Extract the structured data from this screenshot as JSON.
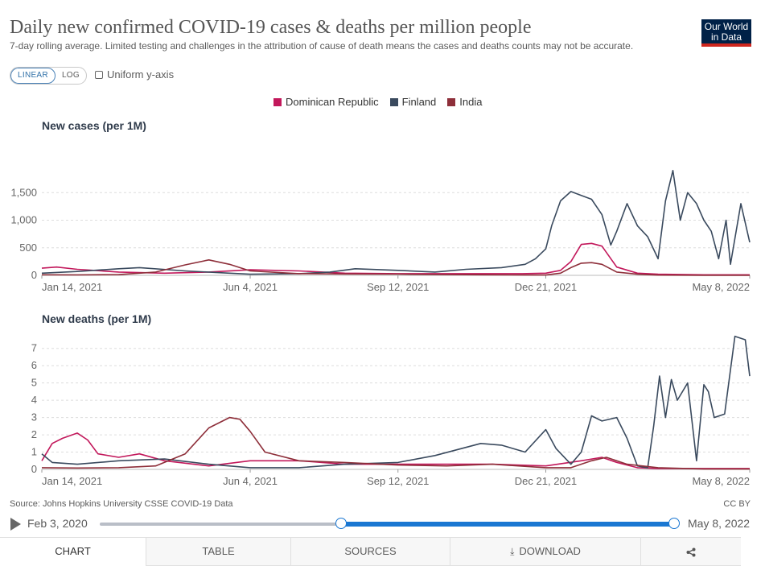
{
  "header": {
    "title": "Daily new confirmed COVID-19 cases & deaths per million people",
    "subtitle": "7-day rolling average. Limited testing and challenges in the attribution of cause of death means the cases and deaths counts may not be accurate.",
    "logo_line1": "Our World",
    "logo_line2": "in Data"
  },
  "controls": {
    "linear_label": "LINEAR",
    "log_label": "LOG",
    "uniform_label": "Uniform y-axis"
  },
  "colors": {
    "dominican": "#c2185b",
    "finland": "#3a4a5e",
    "india": "#8e2f3a",
    "accent": "#1a77d2"
  },
  "chart_data": [
    {
      "type": "line",
      "title": "New cases (per 1M)",
      "x_ticks": [
        "Jan 14, 2021",
        "Jun 4, 2021",
        "Sep 12, 2021",
        "Dec 21, 2021",
        "May 8, 2022"
      ],
      "x_range": [
        "2021-01-14",
        "2022-05-08"
      ],
      "y_ticks": [
        "0",
        "500",
        "1,000",
        "1,500"
      ],
      "ylim": [
        0,
        2000
      ],
      "grid": true,
      "series": [
        {
          "name": "Dominican Republic",
          "color": "#c2185b",
          "x": [
            "2021-01-14",
            "2021-01-24",
            "2021-02-07",
            "2021-03-07",
            "2021-04-07",
            "2021-05-07",
            "2021-06-04",
            "2021-07-07",
            "2021-08-07",
            "2021-09-12",
            "2021-10-15",
            "2021-11-15",
            "2021-12-05",
            "2021-12-21",
            "2021-12-31",
            "2022-01-07",
            "2022-01-14",
            "2022-01-21",
            "2022-01-28",
            "2022-02-07",
            "2022-02-21",
            "2022-03-07",
            "2022-04-07",
            "2022-05-08"
          ],
          "values": [
            130,
            150,
            110,
            60,
            40,
            60,
            100,
            80,
            40,
            30,
            30,
            30,
            30,
            40,
            90,
            250,
            560,
            580,
            530,
            150,
            40,
            20,
            10,
            10
          ]
        },
        {
          "name": "Finland",
          "color": "#3a4a5e",
          "x": [
            "2021-01-14",
            "2021-02-07",
            "2021-03-07",
            "2021-03-21",
            "2021-04-21",
            "2021-05-21",
            "2021-06-04",
            "2021-07-07",
            "2021-07-28",
            "2021-08-14",
            "2021-09-12",
            "2021-10-07",
            "2021-10-28",
            "2021-11-21",
            "2021-12-07",
            "2021-12-14",
            "2021-12-21",
            "2021-12-25",
            "2021-12-31",
            "2022-01-07",
            "2022-01-14",
            "2022-01-21",
            "2022-01-28",
            "2022-02-03",
            "2022-02-07",
            "2022-02-14",
            "2022-02-21",
            "2022-02-28",
            "2022-03-07",
            "2022-03-12",
            "2022-03-17",
            "2022-03-22",
            "2022-03-27",
            "2022-04-02",
            "2022-04-07",
            "2022-04-12",
            "2022-04-17",
            "2022-04-22",
            "2022-04-25",
            "2022-05-02",
            "2022-05-08"
          ],
          "values": [
            40,
            70,
            120,
            140,
            80,
            40,
            20,
            30,
            60,
            120,
            90,
            60,
            110,
            140,
            200,
            300,
            480,
            900,
            1350,
            1520,
            1450,
            1380,
            1100,
            550,
            800,
            1300,
            900,
            700,
            300,
            1350,
            1900,
            1000,
            1500,
            1300,
            1000,
            800,
            300,
            1000,
            200,
            1300,
            600
          ]
        },
        {
          "name": "India",
          "color": "#8e2f3a",
          "x": [
            "2021-01-14",
            "2021-02-07",
            "2021-03-07",
            "2021-04-01",
            "2021-04-21",
            "2021-05-07",
            "2021-05-21",
            "2021-06-04",
            "2021-07-07",
            "2021-08-07",
            "2021-09-12",
            "2021-10-07",
            "2021-11-07",
            "2021-12-07",
            "2021-12-21",
            "2021-12-31",
            "2022-01-07",
            "2022-01-14",
            "2022-01-21",
            "2022-01-28",
            "2022-02-07",
            "2022-02-21",
            "2022-03-07",
            "2022-04-07",
            "2022-05-08"
          ],
          "values": [
            10,
            9,
            13,
            60,
            190,
            280,
            200,
            80,
            30,
            25,
            22,
            15,
            10,
            6,
            6,
            40,
            140,
            220,
            230,
            200,
            60,
            20,
            5,
            1,
            2
          ]
        }
      ]
    },
    {
      "type": "line",
      "title": "New deaths (per 1M)",
      "x_ticks": [
        "Jan 14, 2021",
        "Jun 4, 2021",
        "Sep 12, 2021",
        "Dec 21, 2021",
        "May 8, 2022"
      ],
      "x_range": [
        "2021-01-14",
        "2022-05-08"
      ],
      "y_ticks": [
        "0",
        "1",
        "2",
        "3",
        "4",
        "5",
        "6",
        "7"
      ],
      "ylim": [
        0,
        7.5
      ],
      "grid": true,
      "series": [
        {
          "name": "Dominican Republic",
          "color": "#c2185b",
          "x": [
            "2021-01-14",
            "2021-01-21",
            "2021-01-28",
            "2021-02-07",
            "2021-02-14",
            "2021-02-21",
            "2021-03-07",
            "2021-03-21",
            "2021-04-07",
            "2021-05-07",
            "2021-06-04",
            "2021-07-07",
            "2021-08-07",
            "2021-09-12",
            "2021-10-15",
            "2021-11-15",
            "2021-12-21",
            "2022-01-14",
            "2022-01-28",
            "2022-02-07",
            "2022-02-21",
            "2022-03-07",
            "2022-04-07",
            "2022-05-08"
          ],
          "values": [
            0.5,
            1.5,
            1.8,
            2.1,
            1.7,
            0.9,
            0.7,
            0.9,
            0.5,
            0.2,
            0.5,
            0.5,
            0.3,
            0.3,
            0.3,
            0.3,
            0.2,
            0.5,
            0.7,
            0.4,
            0.1,
            0.05,
            0.05,
            0.05
          ]
        },
        {
          "name": "Finland",
          "color": "#3a4a5e",
          "x": [
            "2021-01-14",
            "2021-01-21",
            "2021-02-07",
            "2021-03-07",
            "2021-04-07",
            "2021-05-07",
            "2021-06-04",
            "2021-07-07",
            "2021-08-07",
            "2021-09-12",
            "2021-10-07",
            "2021-11-07",
            "2021-11-21",
            "2021-12-07",
            "2021-12-21",
            "2021-12-28",
            "2022-01-07",
            "2022-01-14",
            "2022-01-21",
            "2022-01-28",
            "2022-02-07",
            "2022-02-14",
            "2022-02-21",
            "2022-02-28",
            "2022-03-04",
            "2022-03-08",
            "2022-03-12",
            "2022-03-16",
            "2022-03-20",
            "2022-03-27",
            "2022-04-02",
            "2022-04-07",
            "2022-04-10",
            "2022-04-14",
            "2022-04-21",
            "2022-04-28",
            "2022-05-05",
            "2022-05-08"
          ],
          "values": [
            0.9,
            0.4,
            0.3,
            0.5,
            0.6,
            0.3,
            0.1,
            0.1,
            0.3,
            0.4,
            0.8,
            1.5,
            1.4,
            1.0,
            2.3,
            1.2,
            0.3,
            1.0,
            3.1,
            2.8,
            3.0,
            1.8,
            0.2,
            0.1,
            2.5,
            5.4,
            3.0,
            5.2,
            4.0,
            5.0,
            0.5,
            4.9,
            4.5,
            3.0,
            3.2,
            7.7,
            7.5,
            5.4
          ]
        },
        {
          "name": "India",
          "color": "#8e2f3a",
          "x": [
            "2021-01-14",
            "2021-02-07",
            "2021-03-07",
            "2021-04-01",
            "2021-04-21",
            "2021-05-07",
            "2021-05-21",
            "2021-05-28",
            "2021-06-04",
            "2021-06-14",
            "2021-07-07",
            "2021-08-07",
            "2021-09-12",
            "2021-10-15",
            "2021-11-15",
            "2021-12-21",
            "2022-01-07",
            "2022-01-21",
            "2022-01-31",
            "2022-02-14",
            "2022-03-07",
            "2022-04-07",
            "2022-05-08"
          ],
          "values": [
            0.1,
            0.08,
            0.1,
            0.2,
            0.9,
            2.4,
            3.0,
            2.9,
            2.2,
            1.0,
            0.5,
            0.4,
            0.25,
            0.2,
            0.3,
            0.1,
            0.1,
            0.5,
            0.7,
            0.3,
            0.1,
            0.02,
            0.02
          ]
        }
      ]
    }
  ],
  "footer": {
    "source": "Source: Johns Hopkins University CSSE COVID-19 Data",
    "license": "CC BY"
  },
  "timeline": {
    "start_label": "Feb 3, 2020",
    "end_label": "May 8, 2022",
    "selection_start_fraction": 0.42,
    "selection_end_fraction": 1.0
  },
  "tabs": {
    "chart": "CHART",
    "table": "TABLE",
    "sources": "SOURCES",
    "download": "DOWNLOAD",
    "share_icon": "share-icon"
  }
}
